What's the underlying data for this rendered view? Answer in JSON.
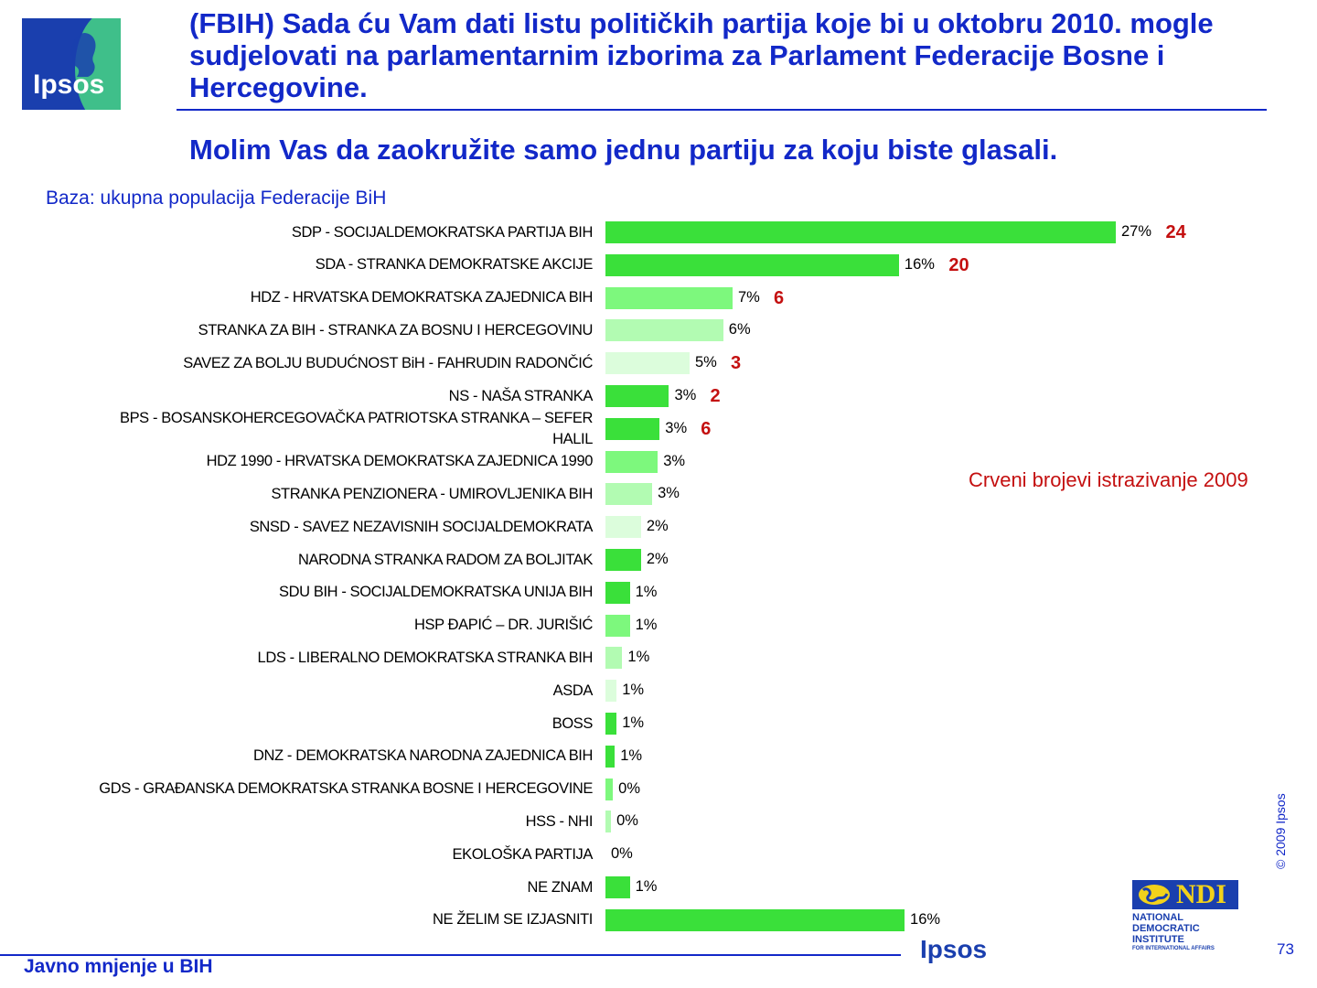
{
  "header": {
    "logo_text": "Ipsos",
    "title": "(FBIH) Sada ću Vam dati listu političkih partija koje bi u oktobru 2010. mogle sudjelovati na parlamentarnim izborima za Parlament Federacije Bosne i Hercegovine.",
    "subtitle": "Molim Vas da zaokružite samo jednu partiju za koju biste glasali."
  },
  "base_text": "Baza: ukupna populacija Federacije BiH",
  "legend_note": "Crveni brojevi istrazivanje 2009",
  "colors": {
    "title": "#1228c8",
    "red": "#c41010",
    "bar_dark": "#3ae03a",
    "bar_mid": "#7df87d",
    "bar_light": "#b2fbb2",
    "bar_pale": "#dcfddc"
  },
  "chart_data": {
    "type": "bar",
    "orientation": "horizontal",
    "title": "Molim Vas da zaokružite samo jednu partiju za koju biste glasali.",
    "unit": "%",
    "categories": [
      "SDP - SOCIJALDEMOKRATSKA PARTIJA BIH",
      "SDA - STRANKA DEMOKRATSKE AKCIJE",
      "HDZ - HRVATSKA DEMOKRATSKA ZAJEDNICA BIH",
      "STRANKA ZA BIH - STRANKA ZA BOSNU I HERCEGOVINU",
      "SAVEZ ZA BOLJU BUDUĆNOST BiH - FAHRUDIN RADONČIĆ",
      "NS - NAŠA STRANKA",
      "BPS - BOSANSKOHERCEGOVAČKA PATRIOTSKA STRANKA – SEFER HALIL",
      "HDZ 1990 - HRVATSKA DEMOKRATSKA ZAJEDNICA 1990",
      "STRANKA PENZIONERA - UMIROVLJENIKA BIH",
      "SNSD - SAVEZ NEZAVISNIH SOCIJALDEMOKRATA",
      "NARODNA STRANKA RADOM ZA BOLJITAK",
      "SDU BIH - SOCIJALDEMOKRATSKA UNIJA BIH",
      "HSP ĐAPIĆ – DR. JURIŠIĆ",
      "LDS - LIBERALNO DEMOKRATSKA STRANKA BIH",
      "ASDA",
      "BOSS",
      "DNZ - DEMOKRATSKA NARODNA ZAJEDNICA BIH",
      "GDS - GRAĐANSKA DEMOKRATSKA STRANKA BOSNE I HERCEGOVINE",
      "HSS - NHI",
      "EKOLOŠKA PARTIJA",
      "NE ZNAM",
      "NE ŽELIM SE IZJASNITI"
    ],
    "values": [
      27.3,
      15.7,
      6.8,
      6.3,
      4.5,
      3.4,
      2.9,
      2.8,
      2.5,
      1.9,
      1.9,
      1.3,
      1.3,
      0.9,
      0.6,
      0.6,
      0.5,
      0.4,
      0.3,
      0,
      1.3,
      16.0
    ],
    "value_labels": [
      "27%",
      "16%",
      "7%",
      "6%",
      "5%",
      "3%",
      "3%",
      "3%",
      "3%",
      "2%",
      "2%",
      "1%",
      "1%",
      "1%",
      "1%",
      "1%",
      "1%",
      "0%",
      "0%",
      "0%",
      "1%",
      "16%"
    ],
    "bar_shades": [
      "dark",
      "dark",
      "mid",
      "light",
      "pale",
      "dark",
      "dark",
      "mid",
      "light",
      "pale",
      "dark",
      "dark",
      "mid",
      "light",
      "pale",
      "dark",
      "dark",
      "mid",
      "light",
      "pale",
      "dark",
      "dark"
    ],
    "previous_2009": [
      "24",
      "20",
      "6",
      "",
      "3",
      "2",
      "6",
      "",
      "",
      "",
      "",
      "",
      "",
      "",
      "",
      "",
      "",
      "",
      "",
      "",
      "",
      ""
    ],
    "xlim": [
      0,
      28
    ]
  },
  "footer": {
    "copyright": "© 2009 Ipsos",
    "left_text": "Javno mnjenje u BIH",
    "ipsos": "Ipsos",
    "ndi_logo": "NDI",
    "ndi_line1": "NATIONAL",
    "ndi_line2": "DEMOCRATIC",
    "ndi_line3": "INSTITUTE",
    "ndi_line4": "FOR INTERNATIONAL AFFAIRS",
    "page_number": "73"
  }
}
